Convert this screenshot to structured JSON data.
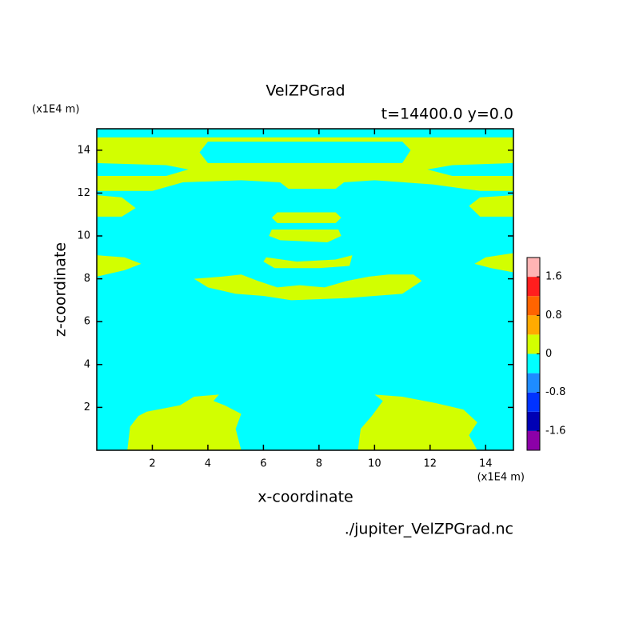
{
  "chart_data": {
    "type": "contour",
    "title": "VelZPGrad",
    "subtitle": "t=14400.0 y=0.0",
    "x_label": "x-coordinate",
    "y_label": "z-coordinate",
    "x_unit": "(x1E4 m)",
    "y_unit": "(x1E4 m)",
    "source": "./jupiter_VelZPGrad.nc",
    "xlim": [
      0,
      15
    ],
    "ylim": [
      0,
      15
    ],
    "xticks": [
      2,
      4,
      6,
      8,
      10,
      12,
      14
    ],
    "yticks": [
      2,
      4,
      6,
      8,
      10,
      12,
      14
    ],
    "colorbar": {
      "levels": [
        -2,
        -1.6,
        -1.2,
        -0.8,
        -0.4,
        0,
        0.4,
        0.8,
        1.2,
        1.6,
        2
      ],
      "colors": [
        "#8c00a8",
        "#0000b4",
        "#0032ff",
        "#1e8cff",
        "#00ffff",
        "#d2ff00",
        "#ffaa00",
        "#ff6400",
        "#ff1e1e",
        "#ffb4b4"
      ],
      "ticks": [
        -1.6,
        -0.8,
        0,
        0.8,
        1.6
      ]
    },
    "contours": [
      {
        "levels": [
          -0.4,
          0
        ],
        "polygons": [
          {
            "x": [
              0,
              15,
              15,
              0
            ],
            "z": [
              0,
              0,
              15,
              15
            ]
          }
        ]
      },
      {
        "levels": [
          0,
          0.4
        ],
        "polygons": [
          {
            "x": [
              0,
              15,
              15,
              13.8,
              12.1,
              10.0,
              8.9,
              8.6,
              6.9,
              6.6,
              5.2,
              3.1,
              2.0,
              0
            ],
            "z": [
              14.6,
              14.6,
              12.1,
              12.1,
              12.4,
              12.6,
              12.5,
              12.2,
              12.2,
              12.5,
              12.6,
              12.5,
              12.1,
              12.1
            ]
          },
          {
            "x": [
              0,
              0.9,
              1.4,
              0.9,
              0
            ],
            "z": [
              11.9,
              11.8,
              11.3,
              10.9,
              10.9
            ]
          },
          {
            "x": [
              15,
              13.8,
              13.4,
              13.8,
              15
            ],
            "z": [
              11.9,
              11.8,
              11.4,
              10.9,
              10.9
            ]
          },
          {
            "x": [
              6.5,
              8.6,
              8.8,
              8.6,
              6.5,
              6.3
            ],
            "z": [
              11.1,
              11.1,
              10.85,
              10.6,
              10.6,
              10.85
            ]
          },
          {
            "x": [
              6.3,
              8.7,
              8.8,
              8.3,
              6.6,
              6.2
            ],
            "z": [
              10.3,
              10.3,
              10.0,
              9.7,
              9.8,
              10.0
            ]
          },
          {
            "x": [
              6.1,
              7.2,
              8.6,
              9.2,
              9.1,
              8.0,
              6.4,
              6.0
            ],
            "z": [
              9.0,
              8.8,
              8.9,
              9.1,
              8.6,
              8.5,
              8.5,
              8.8
            ]
          },
          {
            "x": [
              0,
              1.0,
              1.6,
              1.0,
              0
            ],
            "z": [
              9.1,
              9.0,
              8.7,
              8.4,
              8.1
            ]
          },
          {
            "x": [
              15,
              14.0,
              13.6,
              14.2,
              15
            ],
            "z": [
              9.2,
              9.0,
              8.7,
              8.5,
              8.3
            ]
          },
          {
            "x": [
              3.5,
              4.5,
              5.2,
              5.8,
              6.5,
              7.3,
              8.2,
              9.0,
              9.8,
              10.5,
              11.4,
              11.7,
              11.0,
              10.0,
              9.0,
              7.0,
              6.0,
              5.0,
              4.0
            ],
            "z": [
              8.0,
              8.1,
              8.2,
              7.9,
              7.6,
              7.7,
              7.6,
              7.9,
              8.1,
              8.2,
              8.2,
              7.9,
              7.3,
              7.2,
              7.1,
              7.0,
              7.2,
              7.3,
              7.6
            ]
          },
          {
            "x": [
              1.1,
              1.2,
              1.5,
              1.8,
              3.0,
              3.5,
              4.4,
              4.2,
              4.6,
              5.2,
              5.0,
              5.2
            ],
            "z": [
              0,
              1.1,
              1.6,
              1.8,
              2.1,
              2.5,
              2.6,
              2.3,
              2.1,
              1.7,
              1.0,
              0
            ]
          },
          {
            "x": [
              9.4,
              9.5,
              9.9,
              10.3,
              10.0,
              11.0,
              12.2,
              13.2,
              13.7,
              13.4,
              13.7
            ],
            "z": [
              0,
              1.0,
              1.6,
              2.3,
              2.6,
              2.5,
              2.2,
              1.9,
              1.3,
              0.7,
              0
            ]
          }
        ]
      },
      {
        "levels": [
          -0.4,
          0
        ],
        "polygons": [
          {
            "x": [
              4.0,
              11.0,
              11.3,
              11.0,
              4.0,
              3.7
            ],
            "z": [
              14.4,
              14.4,
              14.0,
              13.4,
              13.4,
              13.9
            ]
          },
          {
            "x": [
              0,
              2.5,
              3.3,
              2.5,
              0
            ],
            "z": [
              13.4,
              13.3,
              13.1,
              12.8,
              12.8
            ]
          },
          {
            "x": [
              15,
              12.8,
              11.9,
              12.8,
              15
            ],
            "z": [
              13.4,
              13.3,
              13.1,
              12.8,
              12.8
            ]
          }
        ]
      }
    ]
  }
}
